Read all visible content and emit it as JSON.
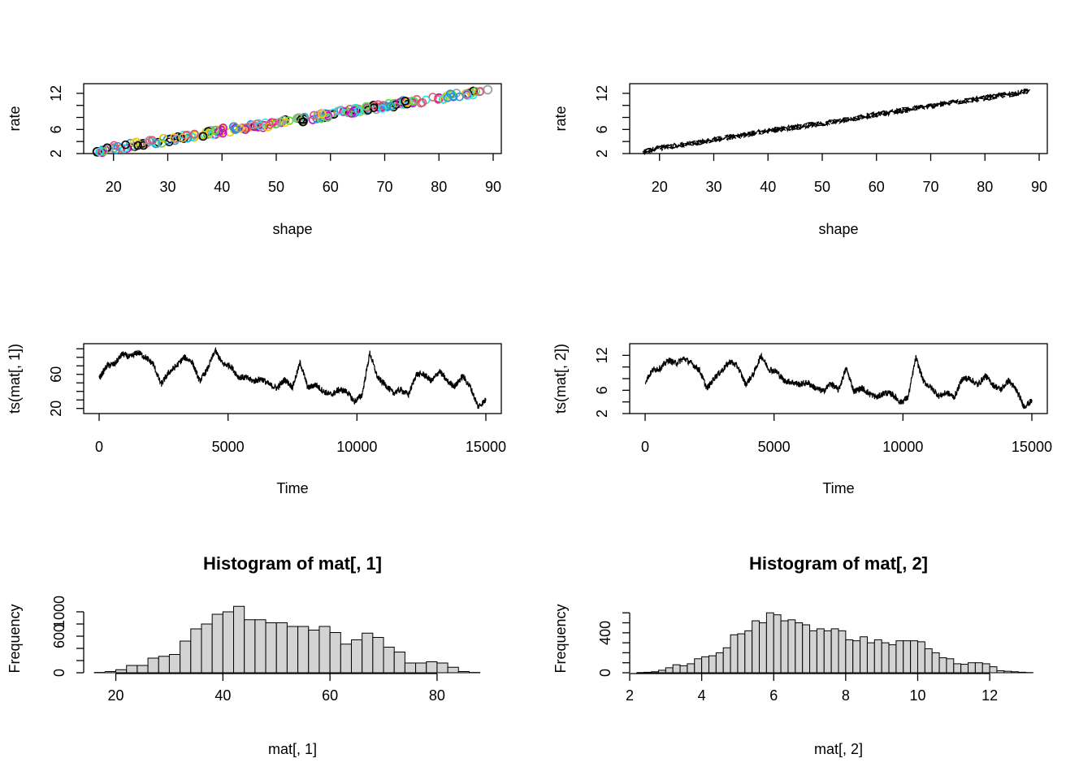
{
  "chart_data": [
    {
      "type": "scatter",
      "title": "",
      "xlabel": "shape",
      "ylabel": "rate",
      "xlim": [
        14.5,
        91.5
      ],
      "ylim": [
        2,
        13.6
      ],
      "xticks": [
        20,
        30,
        40,
        50,
        60,
        70,
        80,
        90
      ],
      "yticks": [
        2,
        6,
        12
      ],
      "markers": "open circles, many colors",
      "series": [
        {
          "x": [
            17,
            20,
            25,
            30,
            35,
            40,
            45,
            50,
            55,
            60,
            65,
            70,
            75,
            80,
            85,
            89
          ],
          "y": [
            2.3,
            2.9,
            3.6,
            4.3,
            5.0,
            5.8,
            6.4,
            7.0,
            7.7,
            8.5,
            9.2,
            9.9,
            10.6,
            11.2,
            11.9,
            12.6
          ]
        }
      ],
      "colors": [
        "#000000",
        "#DF536B",
        "#61D04F",
        "#2297E6",
        "#28E2E5",
        "#CD0BBC",
        "#F5C710",
        "#9E9E9E"
      ]
    },
    {
      "type": "line",
      "title": "",
      "xlabel": "shape",
      "ylabel": "rate",
      "xlim": [
        14.5,
        91.5
      ],
      "ylim": [
        2,
        13.6
      ],
      "xticks": [
        20,
        30,
        40,
        50,
        60,
        70,
        80,
        90
      ],
      "yticks": [
        2,
        6,
        12
      ],
      "series": [
        {
          "x": [
            17,
            20,
            25,
            30,
            35,
            40,
            45,
            50,
            55,
            60,
            65,
            70,
            75,
            80,
            85,
            89
          ],
          "y": [
            2.3,
            2.9,
            3.6,
            4.3,
            5.0,
            5.8,
            6.4,
            7.0,
            7.7,
            8.5,
            9.2,
            9.9,
            10.6,
            11.2,
            11.9,
            12.6
          ]
        }
      ]
    },
    {
      "type": "line",
      "title": "",
      "xlabel": "Time",
      "ylabel": "ts(mat[, 1])",
      "xlim": [
        -600,
        15600
      ],
      "ylim": [
        14,
        96
      ],
      "xticks": [
        0,
        5000,
        10000,
        15000
      ],
      "yticks": [
        20,
        60
      ],
      "series": [
        {
          "x": [
            0,
            300,
            600,
            900,
            1200,
            1500,
            1800,
            2100,
            2400,
            2700,
            3000,
            3300,
            3600,
            3900,
            4200,
            4500,
            4800,
            5100,
            5400,
            5700,
            6000,
            6300,
            6600,
            6900,
            7200,
            7500,
            7800,
            8100,
            8400,
            8700,
            9000,
            9300,
            9600,
            9900,
            10200,
            10500,
            10800,
            11100,
            11400,
            11700,
            12000,
            12300,
            12600,
            12900,
            13200,
            13500,
            13800,
            14100,
            14400,
            14700,
            15000
          ],
          "y": [
            55,
            70,
            72,
            84,
            80,
            86,
            80,
            72,
            48,
            62,
            70,
            80,
            75,
            52,
            66,
            88,
            72,
            70,
            57,
            56,
            52,
            55,
            48,
            44,
            54,
            45,
            74,
            44,
            48,
            40,
            36,
            42,
            40,
            28,
            36,
            85,
            56,
            48,
            38,
            42,
            36,
            60,
            60,
            52,
            64,
            52,
            46,
            58,
            45,
            22,
            30
          ]
        }
      ]
    },
    {
      "type": "line",
      "title": "",
      "xlabel": "Time",
      "ylabel": "ts(mat[, 2])",
      "xlim": [
        -600,
        15600
      ],
      "ylim": [
        2,
        14
      ],
      "xticks": [
        0,
        5000,
        10000,
        15000
      ],
      "yticks": [
        2,
        6,
        12
      ],
      "series": [
        {
          "x": [
            0,
            300,
            600,
            900,
            1200,
            1500,
            1800,
            2100,
            2400,
            2700,
            3000,
            3300,
            3600,
            3900,
            4200,
            4500,
            4800,
            5100,
            5400,
            5700,
            6000,
            6300,
            6600,
            6900,
            7200,
            7500,
            7800,
            8100,
            8400,
            8700,
            9000,
            9300,
            9600,
            9900,
            10200,
            10500,
            10800,
            11100,
            11400,
            11700,
            12000,
            12300,
            12600,
            12900,
            13200,
            13500,
            13800,
            14100,
            14400,
            14700,
            15000
          ],
          "y": [
            7.5,
            9.5,
            9.8,
            11.2,
            10.6,
            11.5,
            10.6,
            9.5,
            6.3,
            8.2,
            9.5,
            11.0,
            10.0,
            7.0,
            8.8,
            12.0,
            9.6,
            9.2,
            7.6,
            7.4,
            7.0,
            7.3,
            6.4,
            5.8,
            7.2,
            6.0,
            9.8,
            5.8,
            6.4,
            5.4,
            4.8,
            5.6,
            5.3,
            3.9,
            4.8,
            11.6,
            7.5,
            6.4,
            5.0,
            5.6,
            4.8,
            8.0,
            8.0,
            6.9,
            8.5,
            6.9,
            6.1,
            7.7,
            6.0,
            3.2,
            4.2
          ]
        }
      ]
    },
    {
      "type": "bar",
      "title": "Histogram of mat[, 1]",
      "xlabel": "mat[, 1]",
      "ylabel": "Frequency",
      "xlim": [
        14,
        92
      ],
      "ylim": [
        0,
        1120
      ],
      "xticks": [
        20,
        40,
        60,
        80
      ],
      "yticks": [
        0,
        600,
        1000
      ],
      "bin_edges": [
        16,
        18,
        20,
        22,
        24,
        26,
        28,
        30,
        32,
        34,
        36,
        38,
        40,
        42,
        44,
        46,
        48,
        50,
        52,
        54,
        56,
        58,
        60,
        62,
        64,
        66,
        68,
        70,
        72,
        74,
        76,
        78,
        80,
        82,
        84,
        86,
        88
      ],
      "values": [
        5,
        20,
        50,
        120,
        120,
        240,
        270,
        300,
        520,
        720,
        800,
        960,
        1000,
        1090,
        870,
        870,
        820,
        820,
        760,
        760,
        700,
        760,
        660,
        470,
        540,
        650,
        580,
        420,
        340,
        160,
        160,
        180,
        160,
        90,
        20,
        5
      ],
      "bar_color": "#D3D3D3"
    },
    {
      "type": "bar",
      "title": "Histogram of mat[, 2]",
      "xlabel": "mat[, 2]",
      "ylabel": "Frequency",
      "xlim": [
        2.0,
        13.6
      ],
      "ylim": [
        0,
        610
      ],
      "xticks": [
        2,
        4,
        6,
        8,
        10,
        12
      ],
      "yticks": [
        0,
        400
      ],
      "bin_edges": [
        2.2,
        2.4,
        2.6,
        2.8,
        3.0,
        3.2,
        3.4,
        3.6,
        3.8,
        4.0,
        4.2,
        4.4,
        4.6,
        4.8,
        5.0,
        5.2,
        5.4,
        5.6,
        5.8,
        6.0,
        6.2,
        6.4,
        6.6,
        6.8,
        7.0,
        7.2,
        7.4,
        7.6,
        7.8,
        8.0,
        8.2,
        8.4,
        8.6,
        8.8,
        9.0,
        9.2,
        9.4,
        9.6,
        9.8,
        10.0,
        10.2,
        10.4,
        10.6,
        10.8,
        11.0,
        11.2,
        11.4,
        11.6,
        11.8,
        12.0,
        12.2,
        12.4,
        12.6,
        12.8,
        13.0,
        13.2
      ],
      "values": [
        2,
        5,
        10,
        25,
        50,
        80,
        70,
        90,
        140,
        160,
        170,
        200,
        250,
        380,
        390,
        420,
        520,
        500,
        600,
        580,
        520,
        530,
        500,
        480,
        420,
        440,
        420,
        440,
        420,
        330,
        320,
        360,
        300,
        330,
        300,
        280,
        320,
        320,
        320,
        310,
        240,
        200,
        150,
        140,
        90,
        85,
        100,
        100,
        90,
        60,
        20,
        15,
        10,
        5,
        2
      ],
      "bar_color": "#D3D3D3"
    }
  ]
}
